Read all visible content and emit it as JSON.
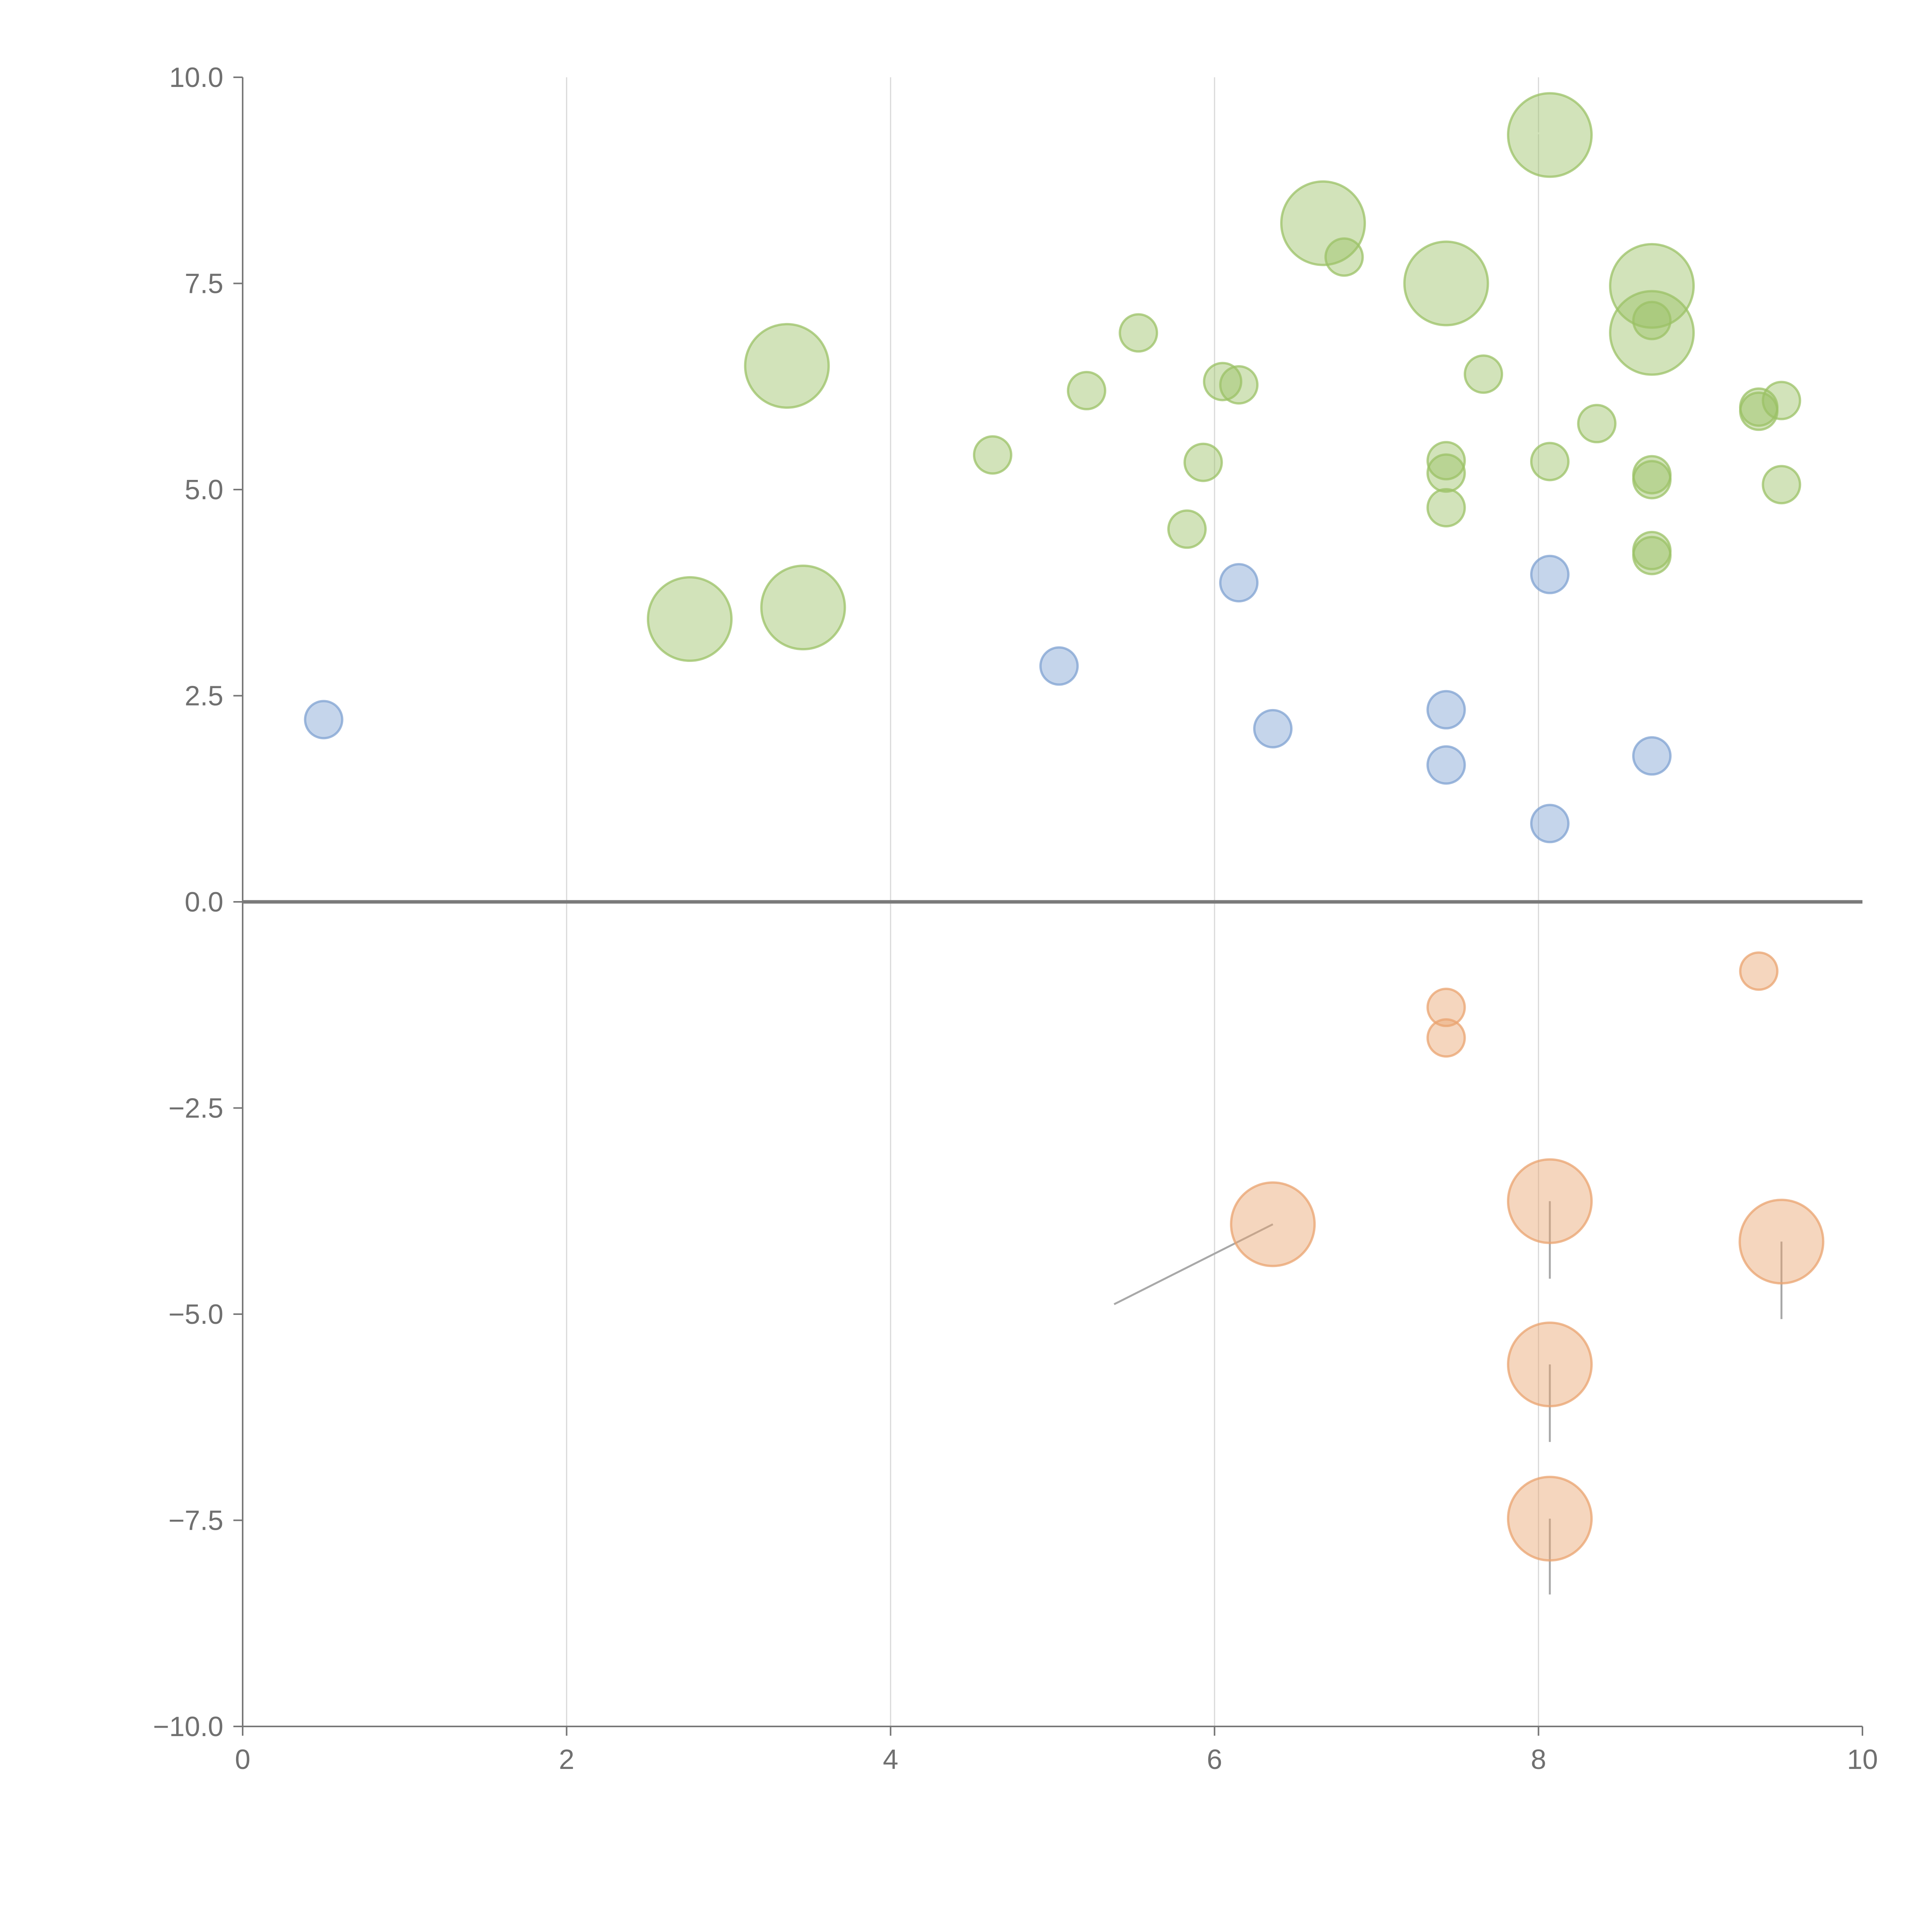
{
  "chart_data": {
    "type": "scatter",
    "title": "",
    "xlabel": "",
    "ylabel": "",
    "xlim": [
      0,
      10
    ],
    "ylim": [
      -10,
      10
    ],
    "x_ticks": [
      "0",
      "2",
      "4",
      "6",
      "8",
      "10"
    ],
    "y_ticks": [
      "10.0",
      "7.5",
      "5.0",
      "2.5",
      "0.0",
      "−2.5",
      "−5.0",
      "−7.5",
      "−10.0"
    ],
    "grid": "vertical",
    "series": [
      {
        "name": "green",
        "color": "#9bc165",
        "points": [
          {
            "x": 8.07,
            "y": 9.3,
            "size": 2
          },
          {
            "x": 6.67,
            "y": 8.23,
            "size": 2
          },
          {
            "x": 6.8,
            "y": 7.82,
            "size": 1
          },
          {
            "x": 7.43,
            "y": 7.5,
            "size": 2
          },
          {
            "x": 8.7,
            "y": 7.47,
            "size": 2
          },
          {
            "x": 8.7,
            "y": 7.05,
            "size": 1
          },
          {
            "x": 8.7,
            "y": 6.9,
            "size": 2
          },
          {
            "x": 5.53,
            "y": 6.9,
            "size": 1
          },
          {
            "x": 3.36,
            "y": 6.5,
            "size": 2
          },
          {
            "x": 7.66,
            "y": 6.4,
            "size": 1
          },
          {
            "x": 6.05,
            "y": 6.31,
            "size": 1
          },
          {
            "x": 6.15,
            "y": 6.27,
            "size": 1
          },
          {
            "x": 5.21,
            "y": 6.2,
            "size": 1
          },
          {
            "x": 9.5,
            "y": 6.08,
            "size": 1
          },
          {
            "x": 9.36,
            "y": 6.0,
            "size": 1
          },
          {
            "x": 9.36,
            "y": 5.95,
            "size": 1
          },
          {
            "x": 8.36,
            "y": 5.8,
            "size": 1
          },
          {
            "x": 4.63,
            "y": 5.42,
            "size": 1
          },
          {
            "x": 7.43,
            "y": 5.35,
            "size": 1
          },
          {
            "x": 8.07,
            "y": 5.34,
            "size": 1
          },
          {
            "x": 5.93,
            "y": 5.33,
            "size": 1
          },
          {
            "x": 7.43,
            "y": 5.2,
            "size": 1
          },
          {
            "x": 8.7,
            "y": 5.18,
            "size": 1
          },
          {
            "x": 8.7,
            "y": 5.12,
            "size": 1
          },
          {
            "x": 9.5,
            "y": 5.06,
            "size": 1
          },
          {
            "x": 7.43,
            "y": 4.78,
            "size": 1
          },
          {
            "x": 5.83,
            "y": 4.52,
            "size": 1
          },
          {
            "x": 8.7,
            "y": 4.26,
            "size": 1
          },
          {
            "x": 8.7,
            "y": 4.2,
            "size": 1
          },
          {
            "x": 3.46,
            "y": 3.57,
            "size": 2
          },
          {
            "x": 2.76,
            "y": 3.43,
            "size": 2
          }
        ]
      },
      {
        "name": "blue",
        "color": "#7fa2d2",
        "points": [
          {
            "x": 8.07,
            "y": 3.97,
            "size": 1
          },
          {
            "x": 6.15,
            "y": 3.87,
            "size": 1
          },
          {
            "x": 5.04,
            "y": 2.86,
            "size": 1
          },
          {
            "x": 7.43,
            "y": 2.33,
            "size": 1
          },
          {
            "x": 0.5,
            "y": 2.21,
            "size": 1
          },
          {
            "x": 6.36,
            "y": 2.1,
            "size": 1
          },
          {
            "x": 8.7,
            "y": 1.77,
            "size": 1
          },
          {
            "x": 7.43,
            "y": 1.66,
            "size": 1
          },
          {
            "x": 8.07,
            "y": 0.95,
            "size": 1
          }
        ]
      },
      {
        "name": "orange",
        "color": "#e9a36f",
        "points": [
          {
            "x": 9.36,
            "y": -0.84,
            "size": 1
          },
          {
            "x": 7.43,
            "y": -1.28,
            "size": 1
          },
          {
            "x": 7.43,
            "y": -1.65,
            "size": 1
          },
          {
            "x": 8.07,
            "y": -3.63,
            "size": 2
          },
          {
            "x": 6.36,
            "y": -3.91,
            "size": 2
          },
          {
            "x": 9.5,
            "y": -4.12,
            "size": 2
          },
          {
            "x": 8.07,
            "y": -5.61,
            "size": 2
          },
          {
            "x": 8.07,
            "y": -7.48,
            "size": 2
          }
        ]
      }
    ],
    "leader_lines": [
      {
        "x1": 6.36,
        "y1": -3.91,
        "x2": 5.38,
        "y2": -4.88,
        "style": "grey"
      },
      {
        "x1": 8.07,
        "y1": -3.63,
        "x2": 8.07,
        "y2": -4.57,
        "style": "grey"
      },
      {
        "x1": 9.5,
        "y1": -4.12,
        "x2": 9.5,
        "y2": -5.06,
        "style": "grey"
      },
      {
        "x1": 8.07,
        "y1": -5.61,
        "x2": 8.07,
        "y2": -6.55,
        "style": "grey"
      },
      {
        "x1": 8.07,
        "y1": -7.48,
        "x2": 8.07,
        "y2": -8.4,
        "style": "grey"
      },
      {
        "x1": 8.07,
        "y1": 9.3,
        "x2": 7.9,
        "y2": 9.35,
        "style": "light"
      },
      {
        "x1": 6.67,
        "y1": 8.23,
        "x2": 6.57,
        "y2": 8.4,
        "style": "light"
      },
      {
        "x1": 8.7,
        "y1": 7.47,
        "x2": 8.86,
        "y2": 7.73,
        "style": "light"
      },
      {
        "x1": 8.7,
        "y1": 6.9,
        "x2": 8.75,
        "y2": 6.55,
        "style": "light"
      },
      {
        "x1": 3.46,
        "y1": 3.57,
        "x2": 3.62,
        "y2": 3.78,
        "style": "light"
      },
      {
        "x1": 2.76,
        "y1": 3.43,
        "x2": 2.96,
        "y2": 3.37,
        "style": "light"
      }
    ]
  }
}
